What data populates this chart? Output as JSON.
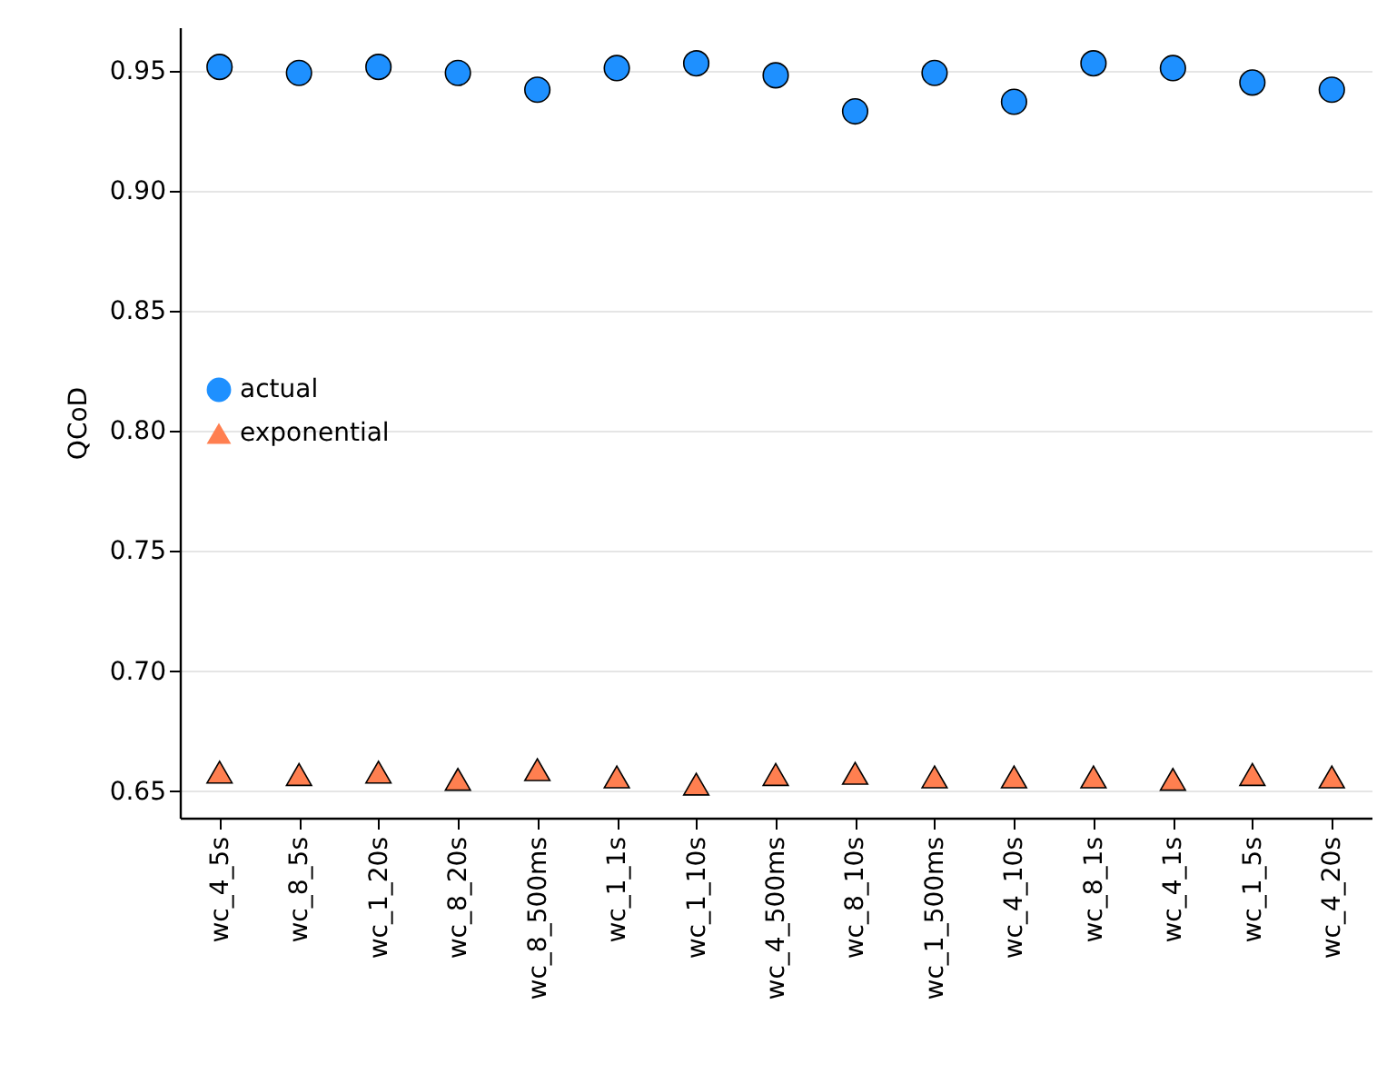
{
  "chart_data": {
    "type": "scatter",
    "ylabel": "QCoD",
    "categories": [
      "wc_4_5s",
      "wc_8_5s",
      "wc_1_20s",
      "wc_8_20s",
      "wc_8_500ms",
      "wc_1_1s",
      "wc_1_10s",
      "wc_4_500ms",
      "wc_8_10s",
      "wc_1_500ms",
      "wc_4_10s",
      "wc_8_1s",
      "wc_4_1s",
      "wc_1_5s",
      "wc_4_20s"
    ],
    "series": [
      {
        "name": "actual",
        "color": "#1e90ff",
        "marker": "circle",
        "values": [
          0.9515,
          0.949,
          0.9515,
          0.949,
          0.942,
          0.951,
          0.953,
          0.948,
          0.933,
          0.949,
          0.937,
          0.953,
          0.951,
          0.945,
          0.942
        ]
      },
      {
        "name": "exponential",
        "color": "#ff7f50",
        "marker": "triangle",
        "values": [
          0.658,
          0.657,
          0.658,
          0.655,
          0.659,
          0.656,
          0.653,
          0.657,
          0.6575,
          0.656,
          0.656,
          0.656,
          0.655,
          0.657,
          0.656
        ]
      }
    ],
    "ylim": [
      0.639,
      0.968
    ],
    "yticks": [
      0.65,
      {
        "value": 0.7,
        "label": "0.70"
      },
      0.75,
      {
        "value": 0.8,
        "label": "0.80"
      },
      0.85,
      {
        "value": 0.9,
        "label": "0.90"
      },
      0.95
    ],
    "grid": "y",
    "legend": "left"
  }
}
